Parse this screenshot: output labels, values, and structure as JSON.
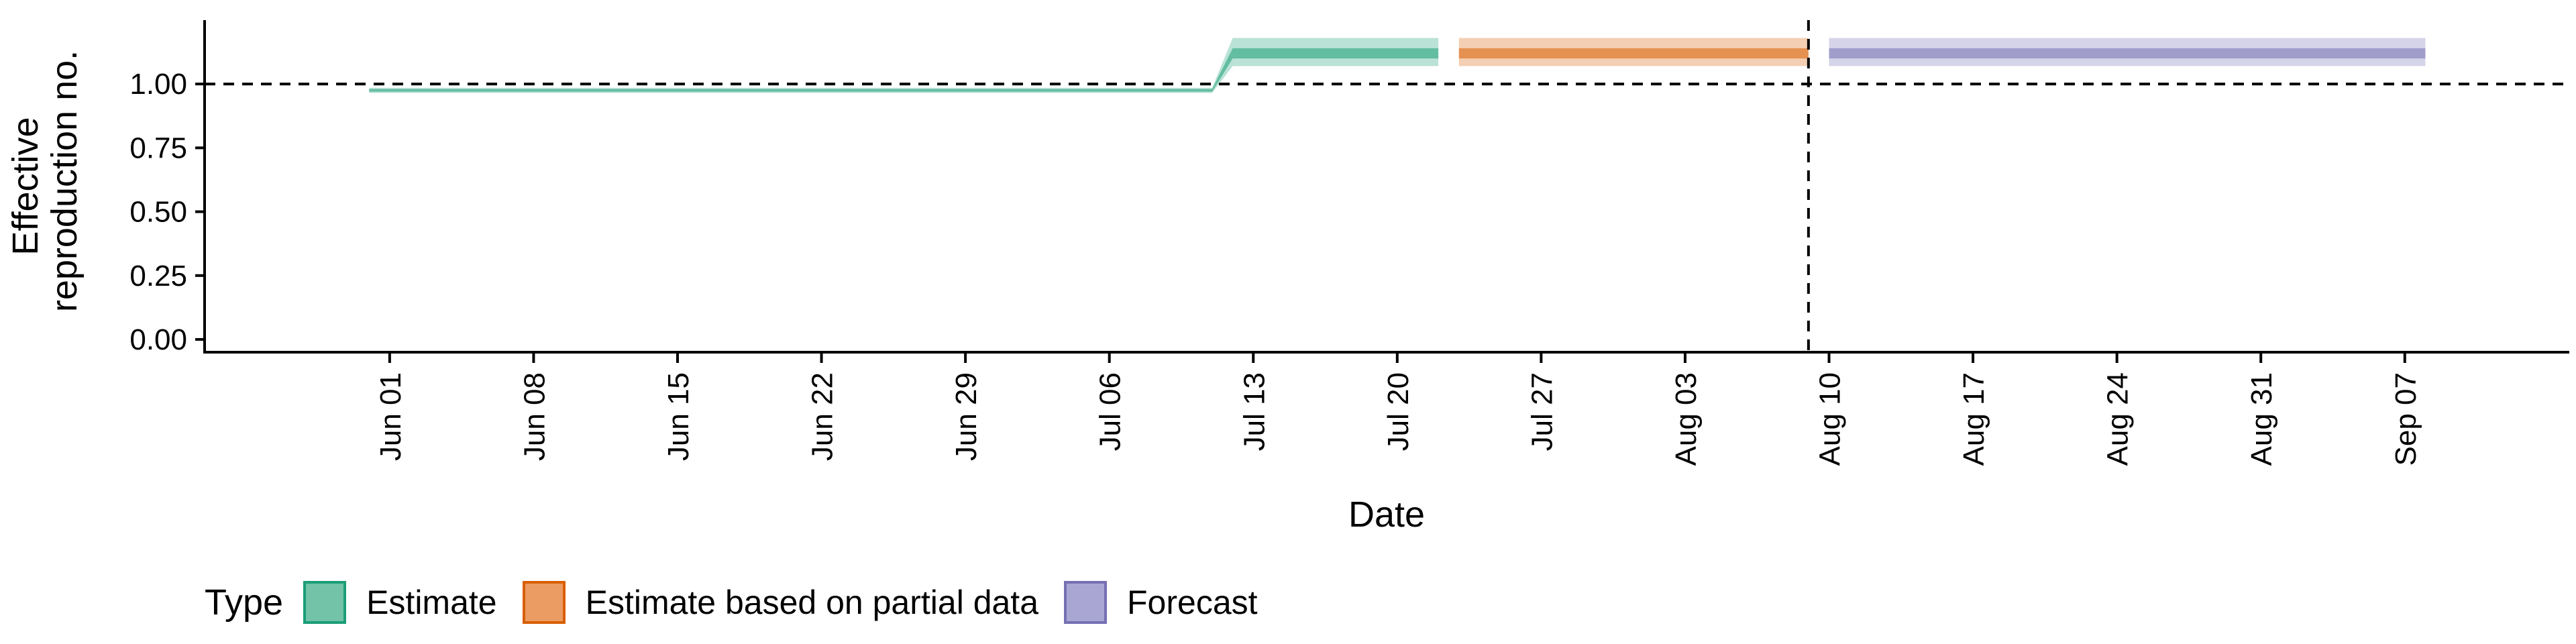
{
  "chart_data": {
    "type": "line",
    "title": "",
    "xlabel": "Date",
    "ylabel_lines": [
      "Effective",
      "reproduction no."
    ],
    "x_range": [
      "2020-05-23",
      "2020-09-15"
    ],
    "ylim": [
      -0.05,
      1.25
    ],
    "y_ticks": [
      0,
      0.25,
      0.5,
      0.75,
      1.0
    ],
    "y_tick_labels": [
      "0.00",
      "0.25",
      "0.50",
      "0.75",
      "1.00"
    ],
    "x_ticks": [
      "2020-06-01",
      "2020-06-08",
      "2020-06-15",
      "2020-06-22",
      "2020-06-29",
      "2020-07-06",
      "2020-07-13",
      "2020-07-20",
      "2020-07-27",
      "2020-08-03",
      "2020-08-10",
      "2020-08-17",
      "2020-08-24",
      "2020-08-31",
      "2020-09-07"
    ],
    "x_tick_labels": [
      "Jun 01",
      "Jun 08",
      "Jun 15",
      "Jun 22",
      "Jun 29",
      "Jul 06",
      "Jul 13",
      "Jul 20",
      "Jul 27",
      "Aug 03",
      "Aug 10",
      "Aug 17",
      "Aug 24",
      "Aug 31",
      "Sep 07"
    ],
    "reference_hline": 1.0,
    "reference_vline": "2020-08-09",
    "grid": false,
    "legend_placement": "bottom-left",
    "legend_title": "Type",
    "series": [
      {
        "name": "Estimate",
        "color": "#1b9e77",
        "points": [
          {
            "x": "2020-05-31",
            "lower90": 0.965,
            "lower50": 0.97,
            "upper50": 0.98,
            "upper90": 0.985
          },
          {
            "x": "2020-07-11",
            "lower90": 0.965,
            "lower50": 0.97,
            "upper50": 0.98,
            "upper90": 0.985
          },
          {
            "x": "2020-07-12",
            "lower90": 1.07,
            "lower50": 1.1,
            "upper50": 1.14,
            "upper90": 1.18
          },
          {
            "x": "2020-07-22",
            "lower90": 1.07,
            "lower50": 1.1,
            "upper50": 1.14,
            "upper90": 1.18
          }
        ]
      },
      {
        "name": "Estimate based on partial data",
        "color": "#d95f02",
        "points": [
          {
            "x": "2020-07-23",
            "lower90": 1.07,
            "lower50": 1.1,
            "upper50": 1.14,
            "upper90": 1.18
          },
          {
            "x": "2020-08-09",
            "lower90": 1.07,
            "lower50": 1.1,
            "upper50": 1.14,
            "upper90": 1.18
          }
        ]
      },
      {
        "name": "Forecast",
        "color": "#7570b3",
        "points": [
          {
            "x": "2020-08-10",
            "lower90": 1.07,
            "lower50": 1.1,
            "upper50": 1.14,
            "upper90": 1.18
          },
          {
            "x": "2020-09-08",
            "lower90": 1.07,
            "lower50": 1.1,
            "upper50": 1.14,
            "upper90": 1.18
          }
        ]
      }
    ]
  },
  "legend": {
    "title": "Type",
    "items": [
      {
        "label": "Estimate",
        "fill": "#72c3a8",
        "border": "#1b9e77"
      },
      {
        "label": "Estimate based on partial data",
        "fill": "#eb9c63",
        "border": "#d95f02"
      },
      {
        "label": "Forecast",
        "fill": "#a9a6d3",
        "border": "#7570b3"
      }
    ]
  }
}
